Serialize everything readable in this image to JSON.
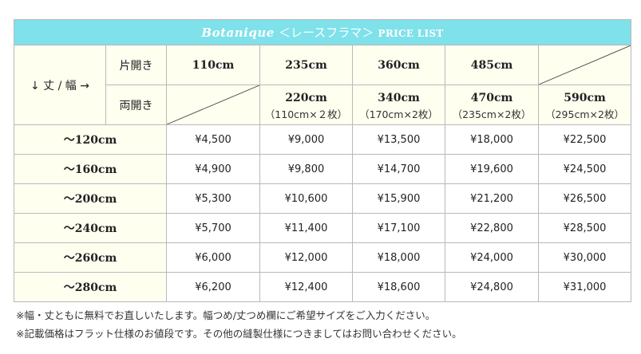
{
  "title": {
    "part1": "Botanique",
    "part2": "＜レースフラマ＞",
    "part3": "PRICE LIST"
  },
  "corner_label": "↓ 丈 / 幅 →",
  "header": {
    "single_label": "片開き",
    "double_label": "両開き",
    "single_widths": [
      "110cm",
      "235cm",
      "360cm",
      "485cm"
    ],
    "double_widths": [
      {
        "width": "220cm",
        "detail": "（110cm×２枚）"
      },
      {
        "width": "340cm",
        "detail": "（170cm×2枚）"
      },
      {
        "width": "470cm",
        "detail": "（235cm×2枚）"
      },
      {
        "width": "590cm",
        "detail": "（295cm×2枚）"
      }
    ]
  },
  "rows": [
    {
      "height": "～120cm",
      "prices": [
        "¥4,500",
        "¥9,000",
        "¥13,500",
        "¥18,000",
        "¥22,500"
      ]
    },
    {
      "height": "～160cm",
      "prices": [
        "¥4,900",
        "¥9,800",
        "¥14,700",
        "¥19,600",
        "¥24,500"
      ]
    },
    {
      "height": "～200cm",
      "prices": [
        "¥5,300",
        "¥10,600",
        "¥15,900",
        "¥21,200",
        "¥26,500"
      ]
    },
    {
      "height": "～240cm",
      "prices": [
        "¥5,700",
        "¥11,400",
        "¥17,100",
        "¥22,800",
        "¥28,500"
      ]
    },
    {
      "height": "～260cm",
      "prices": [
        "¥6,000",
        "¥12,000",
        "¥18,000",
        "¥24,000",
        "¥30,000"
      ]
    },
    {
      "height": "～280cm",
      "prices": [
        "¥6,200",
        "¥12,400",
        "¥18,600",
        "¥24,800",
        "¥31,000"
      ]
    }
  ],
  "notes": [
    "※幅・丈ともに無料でお直しいたします。幅つめ/丈つめ欄にご希望サイズをご入力ください。",
    "※記載価格はフラット仕様のお値段です。その他の縫製仕様につきましてはお問い合わせください。"
  ],
  "colors": {
    "title_bg": "#7fe1ea",
    "header_bg": "#fffff0",
    "border": "#b9b9b9"
  }
}
